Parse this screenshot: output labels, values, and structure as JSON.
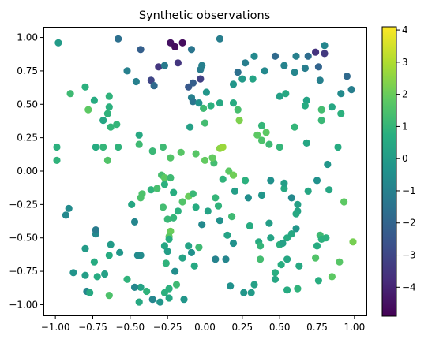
{
  "chart_data": {
    "type": "scatter",
    "title": "Synthetic observations",
    "xlabel": "",
    "ylabel": "",
    "xlim": [
      -1.08,
      1.08
    ],
    "ylim": [
      -1.08,
      1.08
    ],
    "xticks": [
      -1.0,
      -0.75,
      -0.5,
      -0.25,
      0.0,
      0.25,
      0.5,
      0.75,
      1.0
    ],
    "xtick_labels": [
      "−1.00",
      "−0.75",
      "−0.50",
      "−0.25",
      "0.00",
      "0.25",
      "0.50",
      "0.75",
      "1.00"
    ],
    "yticks": [
      -1.0,
      -0.75,
      -0.5,
      -0.25,
      0.0,
      0.25,
      0.5,
      0.75,
      1.0
    ],
    "ytick_labels": [
      "−1.00",
      "−0.75",
      "−0.50",
      "−0.25",
      "0.00",
      "0.25",
      "0.50",
      "0.75",
      "1.00"
    ],
    "grid": false,
    "colormap": "viridis",
    "colorbar": {
      "vmin": -4.9,
      "vmax": 4.1,
      "ticks": [
        -4,
        -3,
        -2,
        -1,
        0,
        1,
        2,
        3,
        4
      ],
      "tick_labels": [
        "−4",
        "−3",
        "−2",
        "−1",
        "0",
        "1",
        "2",
        "3",
        "4"
      ]
    },
    "points": [
      [
        -0.58,
        0.99,
        -1.6
      ],
      [
        -0.23,
        0.96,
        -4.5
      ],
      [
        -0.2,
        0.93,
        -4.6
      ],
      [
        -0.15,
        0.96,
        -4.6
      ],
      [
        -0.43,
        0.91,
        -2.2
      ],
      [
        -0.09,
        0.91,
        -1.4
      ],
      [
        0.1,
        0.99,
        -1.1
      ],
      [
        0.22,
        0.74,
        -1.6
      ],
      [
        0.27,
        0.81,
        -1.1
      ],
      [
        0.33,
        0.86,
        -0.7
      ],
      [
        0.47,
        0.86,
        -1.8
      ],
      [
        0.61,
        0.86,
        -1.0
      ],
      [
        0.69,
        0.86,
        -1.7
      ],
      [
        0.74,
        0.89,
        -3.6
      ],
      [
        0.8,
        0.88,
        -3.4
      ],
      [
        0.8,
        0.94,
        -0.8
      ],
      [
        0.76,
        0.78,
        -2.0
      ],
      [
        0.77,
        0.68,
        -1.0
      ],
      [
        0.53,
        0.79,
        -0.9
      ],
      [
        0.67,
        0.77,
        -1.1
      ],
      [
        0.6,
        0.74,
        -0.8
      ],
      [
        0.4,
        0.75,
        -0.7
      ],
      [
        0.32,
        0.69,
        0.3
      ],
      [
        0.25,
        0.69,
        -0.1
      ],
      [
        0.19,
        0.65,
        -0.2
      ],
      [
        -0.31,
        0.78,
        -3.5
      ],
      [
        -0.18,
        0.81,
        -3.5
      ],
      [
        -0.03,
        0.76,
        -1.2
      ],
      [
        -0.02,
        0.79,
        -1.0
      ],
      [
        -0.03,
        0.69,
        -3.2
      ],
      [
        -0.36,
        0.68,
        -3.0
      ],
      [
        -0.46,
        0.67,
        -1.0
      ],
      [
        -0.34,
        0.64,
        -1.8
      ],
      [
        -0.11,
        0.63,
        -2.4
      ],
      [
        -0.08,
        0.66,
        -2.2
      ],
      [
        -0.09,
        0.55,
        -1.0
      ],
      [
        -0.08,
        0.52,
        -1.4
      ],
      [
        -0.04,
        0.51,
        -0.4
      ],
      [
        -0.01,
        0.47,
        1.2
      ],
      [
        0.04,
        0.49,
        0.8
      ],
      [
        0.1,
        0.51,
        0.5
      ],
      [
        0.19,
        0.51,
        0.6
      ],
      [
        0.22,
        0.46,
        1.4
      ],
      [
        0.23,
        0.38,
        2.3
      ],
      [
        0.01,
        0.59,
        -0.2
      ],
      [
        0.0,
        0.36,
        1.3
      ],
      [
        -0.1,
        0.33,
        0.2
      ],
      [
        -0.98,
        0.96,
        0.0
      ],
      [
        0.95,
        0.71,
        -1.8
      ],
      [
        0.98,
        0.61,
        -1.1
      ],
      [
        0.91,
        0.58,
        -0.6
      ],
      [
        0.85,
        0.48,
        0.4
      ],
      [
        0.91,
        0.43,
        0.8
      ],
      [
        0.78,
        0.46,
        1.3
      ],
      [
        0.78,
        0.38,
        1.1
      ],
      [
        0.68,
        0.53,
        0.3
      ],
      [
        0.67,
        0.49,
        0.6
      ],
      [
        0.6,
        0.33,
        1.0
      ],
      [
        0.5,
        0.56,
        0.2
      ],
      [
        0.54,
        0.58,
        0.5
      ],
      [
        0.38,
        0.34,
        1.0
      ],
      [
        0.41,
        0.29,
        1.8
      ],
      [
        0.38,
        0.23,
        1.5
      ],
      [
        0.35,
        0.27,
        1.8
      ],
      [
        0.43,
        0.2,
        1.2
      ],
      [
        0.5,
        0.18,
        1.0
      ],
      [
        0.68,
        0.21,
        0.4
      ],
      [
        0.82,
        0.05,
        -0.2
      ],
      [
        0.89,
        0.18,
        0.6
      ],
      [
        0.93,
        -0.23,
        1.8
      ],
      [
        0.99,
        -0.53,
        2.2
      ],
      [
        0.9,
        -0.68,
        1.7
      ],
      [
        0.85,
        -0.79,
        1.8
      ],
      [
        0.81,
        -0.5,
        0.8
      ],
      [
        0.77,
        -0.48,
        1.2
      ],
      [
        0.83,
        -0.14,
        0.4
      ],
      [
        0.75,
        -0.07,
        -0.4
      ],
      [
        0.69,
        -0.15,
        0.4
      ],
      [
        0.62,
        -0.3,
        0.3
      ],
      [
        0.62,
        -0.25,
        0.2
      ],
      [
        0.58,
        -0.2,
        -0.7
      ],
      [
        0.53,
        -0.13,
        0.5
      ],
      [
        0.53,
        -0.09,
        0.1
      ],
      [
        0.44,
        -0.07,
        -0.4
      ],
      [
        0.38,
        -0.18,
        -0.2
      ],
      [
        0.29,
        -0.2,
        -0.5
      ],
      [
        0.27,
        -0.07,
        0.8
      ],
      [
        0.2,
        -0.15,
        0.1
      ],
      [
        0.12,
        -0.06,
        0.9
      ],
      [
        0.16,
        0.0,
        1.8
      ],
      [
        0.19,
        -0.03,
        2.1
      ],
      [
        0.06,
        0.06,
        1.3
      ],
      [
        0.05,
        0.1,
        1.9
      ],
      [
        0.1,
        0.17,
        2.5
      ],
      [
        0.12,
        0.18,
        2.7
      ],
      [
        0.0,
        0.08,
        1.9
      ],
      [
        -0.06,
        0.13,
        1.7
      ],
      [
        -0.16,
        0.14,
        1.7
      ],
      [
        -0.23,
        0.1,
        1.6
      ],
      [
        -0.28,
        0.18,
        1.2
      ],
      [
        -0.35,
        0.15,
        1.1
      ],
      [
        -0.44,
        0.2,
        1.2
      ],
      [
        -0.44,
        0.27,
        0.5
      ],
      [
        -0.59,
        0.35,
        1.0
      ],
      [
        -0.63,
        0.33,
        1.0
      ],
      [
        -0.65,
        0.43,
        0.9
      ],
      [
        -0.64,
        0.48,
        0.8
      ],
      [
        -0.64,
        0.56,
        0.9
      ],
      [
        -0.68,
        0.38,
        0.4
      ],
      [
        -0.74,
        0.53,
        0.6
      ],
      [
        -0.78,
        0.46,
        1.8
      ],
      [
        -0.8,
        0.63,
        0.8
      ],
      [
        -0.9,
        0.58,
        1.2
      ],
      [
        -0.99,
        0.18,
        0.8
      ],
      [
        -0.99,
        0.08,
        0.9
      ],
      [
        -0.73,
        0.18,
        0.6
      ],
      [
        -0.68,
        0.18,
        1.0
      ],
      [
        -0.65,
        0.08,
        1.6
      ],
      [
        -0.58,
        0.18,
        0.9
      ],
      [
        -0.36,
        -0.14,
        0.9
      ],
      [
        -0.29,
        -0.03,
        1.4
      ],
      [
        -0.27,
        -0.05,
        1.8
      ],
      [
        -0.23,
        -0.05,
        1.2
      ],
      [
        -0.21,
        -0.16,
        0.7
      ],
      [
        -0.27,
        -0.1,
        0.8
      ],
      [
        -0.32,
        -0.13,
        1.4
      ],
      [
        -0.42,
        -0.17,
        1.5
      ],
      [
        -0.43,
        -0.2,
        1.5
      ],
      [
        -0.49,
        -0.25,
        0.4
      ],
      [
        -0.28,
        -0.27,
        1.3
      ],
      [
        -0.25,
        -0.36,
        1.1
      ],
      [
        -0.21,
        -0.35,
        1.0
      ],
      [
        -0.23,
        -0.45,
        2.0
      ],
      [
        -0.18,
        -0.3,
        0.8
      ],
      [
        -0.15,
        -0.23,
        1.6
      ],
      [
        -0.11,
        -0.19,
        2.0
      ],
      [
        -0.08,
        -0.17,
        1.1
      ],
      [
        -0.06,
        -0.27,
        0.6
      ],
      [
        -0.02,
        -0.4,
        -0.7
      ],
      [
        0.02,
        -0.3,
        0.3
      ],
      [
        0.07,
        -0.2,
        1.0
      ],
      [
        0.09,
        -0.26,
        0.9
      ],
      [
        0.1,
        -0.37,
        -0.4
      ],
      [
        0.15,
        -0.48,
        0.3
      ],
      [
        0.18,
        -0.34,
        1.2
      ],
      [
        0.3,
        -0.41,
        0.6
      ],
      [
        0.36,
        -0.53,
        0.6
      ],
      [
        0.37,
        -0.56,
        1.0
      ],
      [
        0.44,
        -0.5,
        0.3
      ],
      [
        0.43,
        -0.39,
        0.1
      ],
      [
        0.5,
        -0.55,
        0.8
      ],
      [
        0.52,
        -0.54,
        0.2
      ],
      [
        0.55,
        -0.5,
        0.6
      ],
      [
        0.58,
        -0.47,
        0.5
      ],
      [
        0.61,
        -0.43,
        -0.2
      ],
      [
        0.61,
        -0.32,
        0.5
      ],
      [
        0.51,
        -0.7,
        0.7
      ],
      [
        0.37,
        -0.66,
        1.3
      ],
      [
        0.47,
        -0.76,
        0.7
      ],
      [
        0.47,
        -0.81,
        0.4
      ],
      [
        0.55,
        -0.66,
        0.4
      ],
      [
        0.63,
        -0.71,
        0.5
      ],
      [
        0.74,
        -0.65,
        1.6
      ],
      [
        0.75,
        -0.56,
        0.6
      ],
      [
        0.78,
        -0.51,
        0.8
      ],
      [
        0.76,
        -0.82,
        0.7
      ],
      [
        0.62,
        -0.88,
        0.9
      ],
      [
        0.55,
        -0.89,
        0.6
      ],
      [
        0.33,
        -0.85,
        0.2
      ],
      [
        0.31,
        -0.91,
        0.0
      ],
      [
        0.26,
        -0.91,
        -0.2
      ],
      [
        0.17,
        -0.86,
        -0.4
      ],
      [
        0.14,
        -0.66,
        -0.8
      ],
      [
        0.07,
        -0.66,
        -0.9
      ],
      [
        0.19,
        -0.54,
        -0.4
      ],
      [
        -0.04,
        -0.57,
        1.2
      ],
      [
        -0.07,
        -0.71,
        0.5
      ],
      [
        -0.09,
        -0.61,
        -0.4
      ],
      [
        -0.11,
        -0.56,
        0.3
      ],
      [
        -0.15,
        -0.65,
        0.3
      ],
      [
        -0.24,
        -0.49,
        1.8
      ],
      [
        -0.24,
        -0.51,
        0.7
      ],
      [
        -0.27,
        -0.56,
        0.4
      ],
      [
        -0.27,
        -0.91,
        0.8
      ],
      [
        -0.24,
        -0.95,
        0.4
      ],
      [
        -0.14,
        -0.96,
        -0.2
      ],
      [
        -0.3,
        -0.98,
        -0.2
      ],
      [
        -0.35,
        -0.96,
        -0.8
      ],
      [
        -0.39,
        -0.9,
        0.9
      ],
      [
        -0.43,
        -0.87,
        0.3
      ],
      [
        -0.44,
        -0.98,
        0.5
      ],
      [
        -0.2,
        -0.75,
        -0.5
      ],
      [
        -0.19,
        -0.85,
        1.2
      ],
      [
        -0.24,
        -0.88,
        0.8
      ],
      [
        -0.26,
        -0.69,
        0.9
      ],
      [
        -0.25,
        -0.6,
        0.1
      ],
      [
        -0.43,
        -0.63,
        -0.6
      ],
      [
        -0.45,
        -0.63,
        -0.6
      ],
      [
        -0.47,
        -0.38,
        -0.8
      ],
      [
        -0.52,
        -0.81,
        0.9
      ],
      [
        -0.47,
        -0.87,
        -0.8
      ],
      [
        -0.57,
        -0.61,
        -0.2
      ],
      [
        -0.63,
        -0.55,
        0.0
      ],
      [
        -0.64,
        -0.63,
        0.6
      ],
      [
        -0.67,
        -0.77,
        0.2
      ],
      [
        -0.72,
        -0.79,
        0.6
      ],
      [
        -0.74,
        -0.68,
        0.6
      ],
      [
        -0.73,
        -0.47,
        -0.7
      ],
      [
        -0.73,
        -0.44,
        -1.2
      ],
      [
        -0.8,
        -0.58,
        0.0
      ],
      [
        -0.8,
        -0.78,
        0.1
      ],
      [
        -0.88,
        -0.76,
        -0.3
      ],
      [
        -0.91,
        -0.28,
        -0.6
      ],
      [
        -0.93,
        -0.33,
        -0.7
      ],
      [
        -0.79,
        -0.9,
        -0.8
      ],
      [
        -0.77,
        -0.91,
        0.5
      ],
      [
        -0.64,
        -0.93,
        1.5
      ],
      [
        -0.52,
        0.75,
        -1.0
      ],
      [
        -0.27,
        0.79,
        -1.2
      ]
    ]
  }
}
